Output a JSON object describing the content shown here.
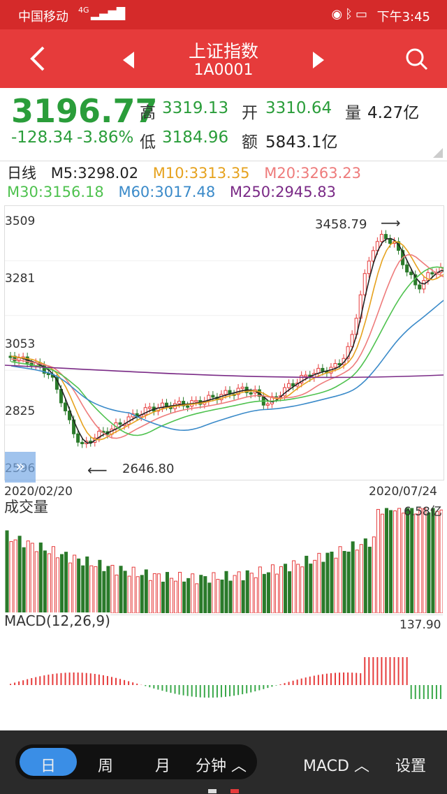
{
  "status_bar": {
    "carrier": "中国移动",
    "network": "4G",
    "time": "下午3:45"
  },
  "header": {
    "title": "上证指数",
    "code": "1A0001"
  },
  "quote": {
    "price": "3196.77",
    "change": "-128.34",
    "change_pct": "-3.86%",
    "high_label": "高",
    "high": "3319.13",
    "open_label": "开",
    "open": "3310.64",
    "volume_label": "量",
    "volume": "4.27亿",
    "low_label": "低",
    "low": "3184.96",
    "amount_label": "额",
    "amount": "5843.1亿"
  },
  "ma": {
    "period": "日线",
    "m5": "M5:3298.02",
    "m10": "M10:3313.35",
    "m20": "M20:3263.23",
    "m30": "M30:3156.18",
    "m60": "M60:3017.48",
    "m250": "M250:2945.83",
    "colors": {
      "m5": "#222222",
      "m10": "#e6a21e",
      "m20": "#ee7b7b",
      "m30": "#4fc24f",
      "m60": "#3a8ac9",
      "m250": "#7a2a86"
    }
  },
  "price_chart": {
    "y_ticks": [
      "3509",
      "3281",
      "3053",
      "2825",
      "2596"
    ],
    "high_annotation": "3458.79",
    "low_annotation": "2646.80",
    "date_start": "2020/02/20",
    "date_end": "2020/07/24"
  },
  "volume_chart": {
    "label": "成交量",
    "max_label": "6.58亿"
  },
  "macd_chart": {
    "label": "MACD(12,26,9)",
    "max_label": "137.90"
  },
  "bottom_bar": {
    "tab_day": "日",
    "tab_week": "周",
    "tab_month": "月",
    "tab_minute": "分钟",
    "indicator": "MACD",
    "settings": "设置"
  },
  "colors": {
    "up": "#e63b3b",
    "down": "#2a7a2a",
    "header": "#e63b3b"
  }
}
